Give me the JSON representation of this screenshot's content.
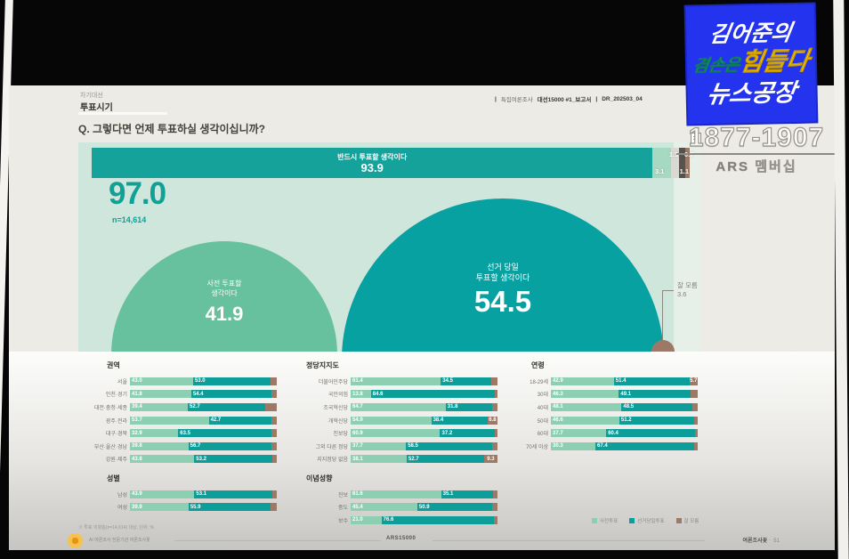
{
  "video": {
    "logo": {
      "line1": "김어준의",
      "line2_a": "겸손은",
      "line2_b": "힘들다",
      "line3": "뉴스공장"
    },
    "phone": "1877-1907",
    "membership": "ARS 멤버십"
  },
  "slide": {
    "category": "차기대선",
    "title": "투표시기",
    "question": "Q. 그렇다면 언제 투표하실 생각이십니까?",
    "report_tag_1": "특집여론조사",
    "report_tag_1b": "대선15000 #1_보고서",
    "report_tag_2": "DR_202503_04",
    "footnote": "※ 투표 의향층(n=14,614) 대상, 단위: %",
    "legend": [
      {
        "label": "사전투표",
        "color": "#8ccfb3"
      },
      {
        "label": "선거당일투표",
        "color": "#0d9e9a"
      },
      {
        "label": "잘 모름",
        "color": "#9d7a67"
      }
    ],
    "footer": {
      "left": "AI 여론조사 전문기관 여론조사꽃",
      "center": "ARS15000",
      "right_brand": "여론조사꽃",
      "right_page": "ㆍ 51"
    }
  },
  "colors": {
    "teal": "#0d9e9a",
    "light_green": "#8ccfb3",
    "brown": "#9d7a67",
    "mint_panel": "#cfe6dc",
    "accent_blue": "#2433ee",
    "accent_yellow": "#ffd517"
  },
  "chart_data": [
    {
      "type": "bar",
      "variant": "stacked",
      "title": "투표 의향",
      "unit": "%",
      "segments": [
        {
          "label": "반드시 투표할 생각이다",
          "value": 93.9
        },
        {
          "label": "",
          "value": 3.1
        },
        {
          "label": "",
          "value": 1.3
        },
        {
          "label": "",
          "value": 1.1
        },
        {
          "label": "",
          "value": 0.7
        }
      ]
    },
    {
      "type": "pie",
      "variant": "bubble",
      "title": "투표 시기",
      "base_pct": 97.0,
      "base_n": "n=14,614",
      "items": [
        {
          "label_lines": [
            "사전 투표할",
            "생각이다"
          ],
          "value": 41.9
        },
        {
          "label_lines": [
            "선거 당일",
            "투표할 생각이다"
          ],
          "value": 54.5
        },
        {
          "label_lines": [
            "잘 모름"
          ],
          "value": 3.6
        }
      ]
    },
    {
      "type": "bar",
      "variant": "stacked-group",
      "id": "region",
      "title": "권역",
      "series": [
        "사전투표",
        "선거당일투표",
        "잘 모름"
      ],
      "rows": [
        [
          "서울",
          43.0,
          53.0,
          null
        ],
        [
          "인천·경기",
          41.8,
          54.4,
          null
        ],
        [
          "대전·충청·세종",
          39.4,
          52.7,
          null
        ],
        [
          "광주·전라",
          53.7,
          42.7,
          null
        ],
        [
          "대구·경북",
          32.9,
          63.5,
          null
        ],
        [
          "부산·울산·경남",
          39.8,
          56.7,
          null
        ],
        [
          "강원·제주",
          43.8,
          53.2,
          null
        ]
      ]
    },
    {
      "type": "bar",
      "variant": "stacked-group",
      "id": "party",
      "title": "정당지지도",
      "series": [
        "사전투표",
        "선거당일투표",
        "잘 모름"
      ],
      "rows": [
        [
          "더불어민주당",
          61.4,
          34.5,
          null
        ],
        [
          "국민의힘",
          13.8,
          84.6,
          null
        ],
        [
          "조국혁신당",
          64.7,
          31.8,
          null
        ],
        [
          "개혁신당",
          54.9,
          38.4,
          6.8
        ],
        [
          "진보당",
          60.9,
          37.2,
          null
        ],
        [
          "그외 다른 정당",
          37.7,
          58.5,
          null
        ],
        [
          "지지정당 없음",
          38.1,
          52.7,
          9.3
        ]
      ]
    },
    {
      "type": "bar",
      "variant": "stacked-group",
      "id": "age",
      "title": "연령",
      "series": [
        "사전투표",
        "선거당일투표",
        "잘 모름"
      ],
      "rows": [
        [
          "18-29세",
          42.9,
          51.4,
          5.7
        ],
        [
          "30대",
          46.3,
          49.1,
          null
        ],
        [
          "40대",
          48.1,
          48.5,
          null
        ],
        [
          "50대",
          46.6,
          51.2,
          null
        ],
        [
          "60대",
          37.7,
          60.4,
          null
        ],
        [
          "70세 이상",
          30.3,
          67.4,
          null
        ]
      ]
    },
    {
      "type": "bar",
      "variant": "stacked-group",
      "id": "gender",
      "title": "성별",
      "series": [
        "사전투표",
        "선거당일투표",
        "잘 모름"
      ],
      "rows": [
        [
          "남성",
          43.9,
          53.1,
          null
        ],
        [
          "여성",
          39.9,
          55.9,
          null
        ]
      ]
    },
    {
      "type": "bar",
      "variant": "stacked-group",
      "id": "ideology",
      "title": "이념성향",
      "series": [
        "사전투표",
        "선거당일투표",
        "잘 모름"
      ],
      "rows": [
        [
          "진보",
          61.6,
          35.1,
          null
        ],
        [
          "중도",
          45.4,
          50.9,
          null
        ],
        [
          "보수",
          21.0,
          76.6,
          null
        ]
      ]
    }
  ]
}
